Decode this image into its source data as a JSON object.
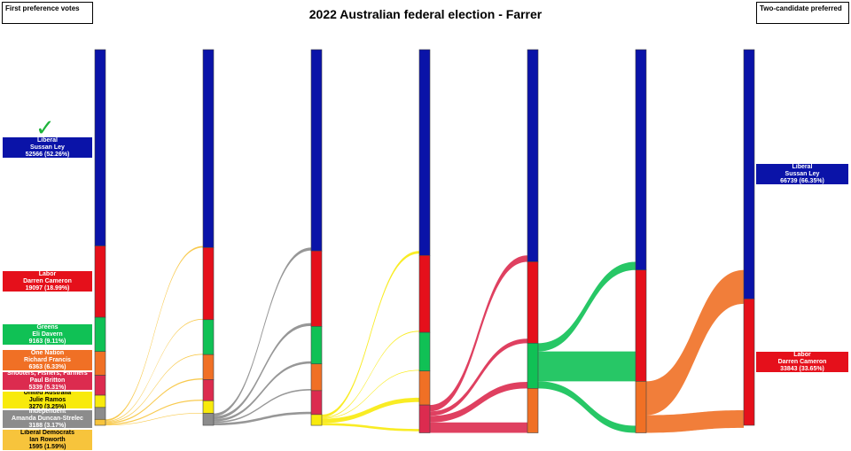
{
  "title": "2022 Australian federal election - Farrer",
  "left_box": "First preference votes",
  "right_box": "Two-candidate preferred",
  "colors": {
    "Liberal": "#0a13a8",
    "Labor": "#e5101b",
    "Greens": "#10c155",
    "One Nation": "#f07025",
    "Shooters, Fishers, Farmers": "#dc2b4f",
    "United Australia": "#f8ea0c",
    "Independent": "#8c8c8c",
    "Liberal Democrats": "#f7c43c"
  },
  "winner_icon": "check-icon",
  "chart_data": {
    "type": "sankey",
    "title": "2022 Australian federal election - Farrer",
    "first_preferences": [
      {
        "party": "Liberal",
        "candidate": "Sussan Ley",
        "votes": 52566,
        "pct": "52.26%",
        "text": "52566 (52.26%)",
        "winner": true
      },
      {
        "party": "Labor",
        "candidate": "Darren Cameron",
        "votes": 19097,
        "pct": "18.99%",
        "text": "19097 (18.99%)"
      },
      {
        "party": "Greens",
        "candidate": "Eli Davern",
        "votes": 9163,
        "pct": "9.11%",
        "text": "9163 (9.11%)"
      },
      {
        "party": "One Nation",
        "candidate": "Richard Francis",
        "votes": 6363,
        "pct": "6.33%",
        "text": "6363 (6.33%)"
      },
      {
        "party": "Shooters, Fishers, Farmers",
        "candidate": "Paul Britton",
        "votes": 5339,
        "pct": "5.31%",
        "text": "5339 (5.31%)"
      },
      {
        "party": "United Australia",
        "candidate": "Julie Ramos",
        "votes": 3270,
        "pct": "3.25%",
        "text": "3270 (3.25%)"
      },
      {
        "party": "Independent",
        "candidate": "Amanda Duncan-Strelec",
        "votes": 3188,
        "pct": "3.17%",
        "text": "3188 (3.17%)"
      },
      {
        "party": "Liberal Democrats",
        "candidate": "Ian Roworth",
        "votes": 1595,
        "pct": "1.59%",
        "text": "1595 (1.59%)"
      }
    ],
    "exclusion_order": [
      "Liberal Democrats",
      "Independent",
      "United Australia",
      "Shooters, Fishers, Farmers",
      "Greens",
      "One Nation"
    ],
    "rounds": [
      {
        "Liberal": 52566,
        "Labor": 19097,
        "Greens": 9163,
        "One Nation": 6363,
        "Shooters, Fishers, Farmers": 5339,
        "United Australia": 3270,
        "Independent": 3188,
        "Liberal Democrats": 1595
      },
      {
        "Liberal": 53000,
        "Labor": 19300,
        "Greens": 9350,
        "One Nation": 6700,
        "Shooters, Fishers, Farmers": 5650,
        "United Australia": 3400,
        "Independent": 3188
      },
      {
        "Liberal": 53900,
        "Labor": 20200,
        "Greens": 10050,
        "One Nation": 7150,
        "Shooters, Fishers, Farmers": 6400,
        "United Australia": 2900
      },
      {
        "Liberal": 55100,
        "Labor": 20600,
        "Greens": 10350,
        "One Nation": 9100,
        "Shooters, Fishers, Farmers": 7450
      },
      {
        "Liberal": 56800,
        "Labor": 21800,
        "Greens": 12100,
        "One Nation": 11900
      },
      {
        "Liberal": 59000,
        "Labor": 29800,
        "One Nation": 13800
      },
      {
        "Liberal": 66739,
        "Labor": 33843
      }
    ],
    "two_candidate_preferred": [
      {
        "party": "Liberal",
        "candidate": "Sussan Ley",
        "votes": 66739,
        "pct": "66.35%",
        "text": "66739 (66.35%)"
      },
      {
        "party": "Labor",
        "candidate": "Darren Cameron",
        "votes": 33843,
        "pct": "33.65%",
        "text": "33843 (33.65%)"
      }
    ]
  }
}
